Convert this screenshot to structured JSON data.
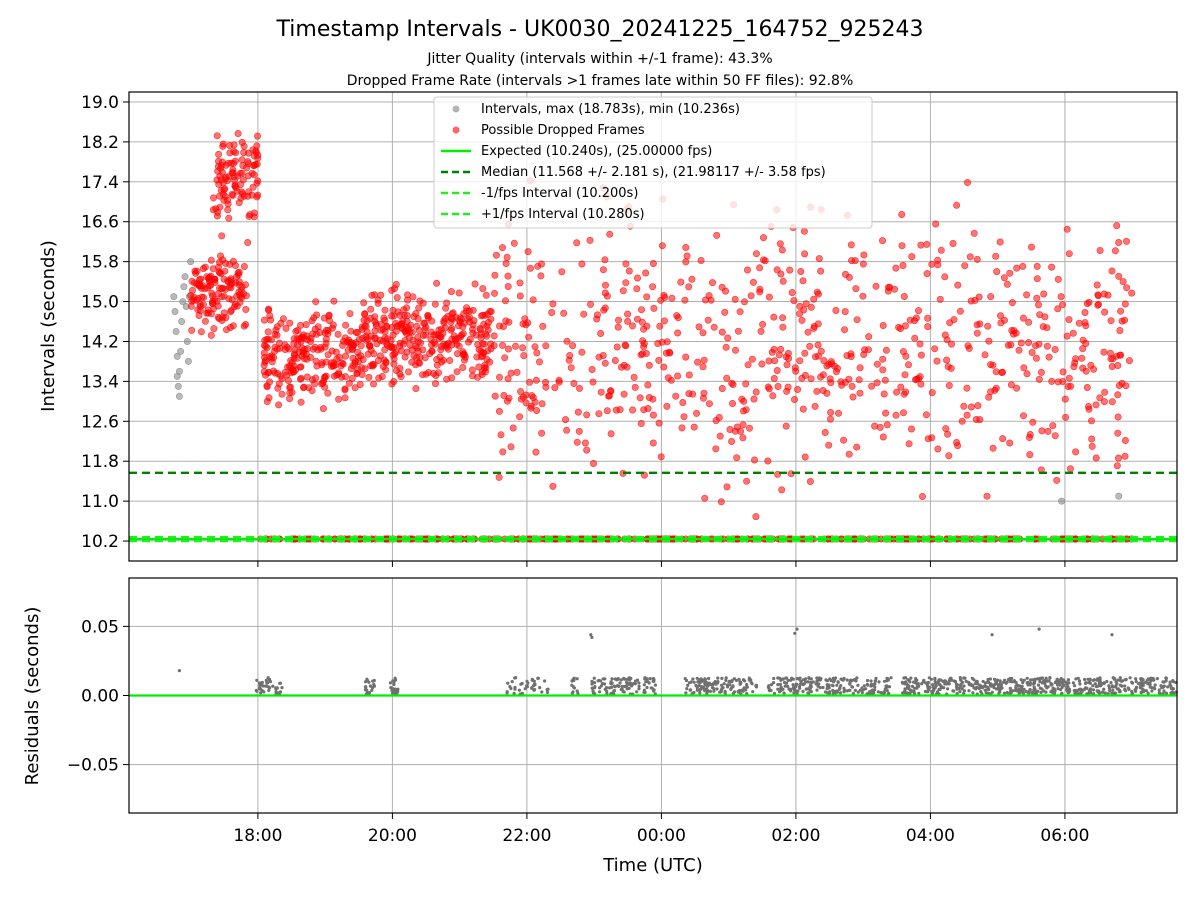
{
  "figure": {
    "title": "Timestamp Intervals - UK0030_20241225_164752_925243",
    "subtitle_1": "Jitter Quality (intervals within +/-1 frame): 43.3%",
    "subtitle_2": "Dropped Frame Rate (intervals >1 frames late within 50 FF files): 92.8%"
  },
  "colors": {
    "intervals": "#808080",
    "dropped": "#ff0000",
    "expected": "#00ee00",
    "median": "#008000",
    "jitter_band": "#22ee22",
    "residuals": "#707070",
    "grid": "#b0b0b0"
  },
  "chart_data": [
    {
      "type": "scatter",
      "panel": "top",
      "xlabel": "Time (UTC)",
      "ylabel": "Intervals (seconds)",
      "xlim": [
        "2024-12-25 16:05",
        "2024-12-26 07:40"
      ],
      "ylim": [
        9.8,
        19.2
      ],
      "grid": true,
      "legend_position": "top-center",
      "x_ticks": [
        "18:00",
        "20:00",
        "22:00",
        "00:00",
        "02:00",
        "04:00",
        "06:00"
      ],
      "x_tick_times": [
        "2024-12-25 18:00",
        "2024-12-25 20:00",
        "2024-12-25 22:00",
        "2024-12-26 00:00",
        "2024-12-26 02:00",
        "2024-12-26 04:00",
        "2024-12-26 06:00"
      ],
      "y_ticks": [
        "10.2",
        "11.0",
        "11.8",
        "12.6",
        "13.4",
        "14.2",
        "15.0",
        "15.8",
        "16.6",
        "17.4",
        "18.2",
        "19.0"
      ],
      "reference_lines": [
        {
          "name": "Expected (10.240s), (25.00000 fps)",
          "y": 10.24,
          "style": "solid"
        },
        {
          "name": "Median (11.568 +/- 2.181 s), (21.98117 +/- 3.58 fps)",
          "y": 11.568,
          "style": "dashed"
        },
        {
          "name": "-1/fps Interval (10.200s)",
          "y": 10.2,
          "style": "dashed"
        },
        {
          "name": "+1/fps Interval (10.280s)",
          "y": 10.28,
          "style": "dashed"
        }
      ],
      "series": [
        {
          "name": "Intervals, max (18.783s), min (10.236s)",
          "note": "gray points, mostly early (16:45–17:00) and a few late ones",
          "points": [
            [
              "2024-12-25 16:45",
              15.1
            ],
            [
              "2024-12-25 16:46",
              14.8
            ],
            [
              "2024-12-25 16:47",
              14.4
            ],
            [
              "2024-12-25 16:48",
              13.9
            ],
            [
              "2024-12-25 16:48",
              13.5
            ],
            [
              "2024-12-25 16:49",
              13.3
            ],
            [
              "2024-12-25 16:50",
              13.1
            ],
            [
              "2024-12-25 16:50",
              13.6
            ],
            [
              "2024-12-25 16:51",
              14.0
            ],
            [
              "2024-12-25 16:52",
              14.6
            ],
            [
              "2024-12-25 16:53",
              15.0
            ],
            [
              "2024-12-25 16:54",
              15.3
            ],
            [
              "2024-12-25 16:55",
              15.5
            ],
            [
              "2024-12-25 16:56",
              14.9
            ],
            [
              "2024-12-25 16:57",
              14.2
            ],
            [
              "2024-12-25 16:58",
              13.8
            ],
            [
              "2024-12-25 16:59",
              15.1
            ],
            [
              "2024-12-25 17:00",
              15.8
            ],
            [
              "2024-12-26 05:57",
              11.0
            ],
            [
              "2024-12-26 06:48",
              11.1
            ]
          ]
        },
        {
          "name": "Possible Dropped Frames",
          "note": "dense red cloud between 10.24 s and ~18.8 s from ~17:00 to ~07:00; band clusters listed below",
          "clusters": [
            {
              "from": "2024-12-25 17:00",
              "to": "2024-12-25 17:50",
              "ymin": 14.2,
              "ymax": 16.2
            },
            {
              "from": "2024-12-25 17:20",
              "to": "2024-12-25 18:00",
              "ymin": 16.0,
              "ymax": 18.8
            },
            {
              "from": "2024-12-25 18:05",
              "to": "2024-12-25 19:30",
              "ymin": 12.6,
              "ymax": 15.2
            },
            {
              "from": "2024-12-25 19:30",
              "to": "2024-12-25 21:30",
              "ymin": 13.0,
              "ymax": 15.6
            },
            {
              "from": "2024-12-25 21:30",
              "to": "2024-12-26 07:00",
              "ymin": 10.3,
              "ymax": 17.8
            }
          ],
          "baseline_band": {
            "from": "2024-12-25 18:00",
            "to": "2024-12-26 07:00",
            "y": 10.24
          }
        }
      ]
    },
    {
      "type": "scatter",
      "panel": "bottom",
      "xlabel": "Time (UTC)",
      "ylabel": "Residuals (seconds)",
      "ylim": [
        -0.085,
        0.085
      ],
      "y_ticks": [
        "0.05",
        "0.00",
        "−0.05"
      ],
      "y_tick_values": [
        0.05,
        0.0,
        -0.05
      ],
      "grid": true,
      "reference_lines": [
        {
          "name": "zero",
          "y": 0.0
        }
      ],
      "series": [
        {
          "name": "residuals",
          "note": "gray dots mostly between 0.00 and 0.015 s; outliers listed",
          "outliers": [
            [
              "2024-12-25 16:50",
              0.018
            ],
            [
              "2024-12-25 22:57",
              0.044
            ],
            [
              "2024-12-25 22:58",
              0.042
            ],
            [
              "2024-12-26 01:59",
              0.045
            ],
            [
              "2024-12-26 02:01",
              0.048
            ],
            [
              "2024-12-26 04:55",
              0.044
            ],
            [
              "2024-12-26 05:37",
              0.048
            ],
            [
              "2024-12-26 06:42",
              0.044
            ]
          ]
        }
      ]
    }
  ],
  "legend": {
    "items": [
      "Intervals, max (18.783s), min (10.236s)",
      "Possible Dropped Frames",
      "Expected (10.240s), (25.00000 fps)",
      "Median (11.568 +/- 2.181 s), (21.98117 +/- 3.58 fps)",
      "-1/fps Interval (10.200s)",
      "+1/fps Interval (10.280s)"
    ]
  }
}
